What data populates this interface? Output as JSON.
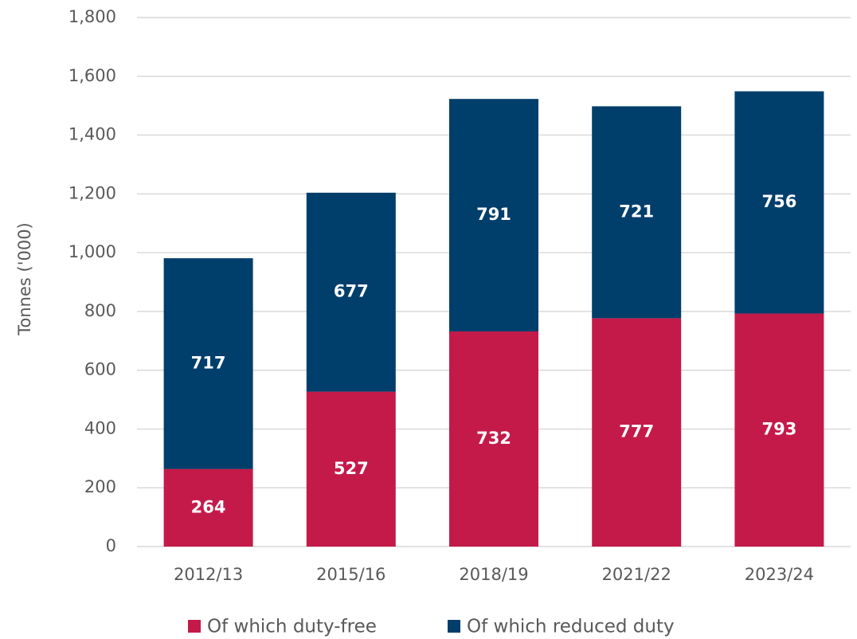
{
  "chart_data": {
    "type": "bar",
    "stacked": true,
    "y_axis_label": "Tonnes ('000)",
    "categories": [
      "2012/13",
      "2015/16",
      "2018/19",
      "2021/22",
      "2023/24"
    ],
    "series": [
      {
        "name": "Of which duty-free",
        "color": "#c41a4a",
        "values": [
          264,
          527,
          732,
          777,
          793
        ]
      },
      {
        "name": "Of which reduced duty",
        "color": "#003e6b",
        "values": [
          717,
          677,
          791,
          721,
          756
        ]
      }
    ],
    "ylim": [
      0,
      1800
    ],
    "yticks": [
      0,
      200,
      400,
      600,
      800,
      {
        "value": 1000,
        "label": "1,000"
      },
      {
        "value": 1200,
        "label": "1,200"
      },
      {
        "value": 1400,
        "label": "1,400"
      },
      {
        "value": 1600,
        "label": "1,600"
      },
      {
        "value": 1800,
        "label": "1,800"
      }
    ],
    "grid": true,
    "legend": "bottom"
  }
}
